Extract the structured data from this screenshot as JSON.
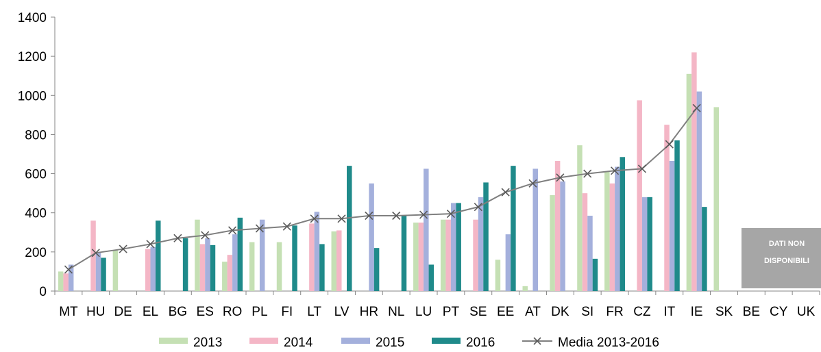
{
  "chart_data": {
    "type": "bar",
    "title": "",
    "xlabel": "",
    "ylabel": "",
    "ylim": [
      0,
      1400
    ],
    "yticks": [
      0,
      200,
      400,
      600,
      800,
      1000,
      1200,
      1400
    ],
    "grid": false,
    "legend_position": "bottom",
    "categories": [
      "MT",
      "HU",
      "DE",
      "EL",
      "BG",
      "ES",
      "RO",
      "PL",
      "FI",
      "LT",
      "LV",
      "HR",
      "NL",
      "LU",
      "PT",
      "SE",
      "EE",
      "AT",
      "DK",
      "SI",
      "FR",
      "CZ",
      "IT",
      "IE",
      "SK",
      "BE",
      "CY",
      "UK"
    ],
    "series": [
      {
        "name": "2013",
        "color": "#c5e0b4",
        "values": [
          100,
          0,
          210,
          0,
          0,
          365,
          150,
          250,
          250,
          0,
          305,
          0,
          0,
          350,
          365,
          0,
          160,
          25,
          490,
          745,
          610,
          0,
          0,
          1110,
          940,
          0,
          0,
          0
        ]
      },
      {
        "name": "2014",
        "color": "#f4b6c6",
        "values": [
          90,
          360,
          0,
          215,
          0,
          240,
          185,
          0,
          0,
          345,
          310,
          0,
          0,
          350,
          365,
          365,
          0,
          0,
          665,
          500,
          550,
          975,
          850,
          1220,
          0,
          0,
          0,
          0
        ]
      },
      {
        "name": "2015",
        "color": "#a4b0dc",
        "values": [
          135,
          195,
          0,
          225,
          0,
          270,
          290,
          365,
          0,
          405,
          0,
          550,
          0,
          625,
          450,
          480,
          290,
          625,
          560,
          385,
          635,
          480,
          665,
          1020,
          0,
          0,
          0,
          0
        ]
      },
      {
        "name": "2016",
        "color": "#1f8a8a",
        "values": [
          0,
          170,
          0,
          360,
          270,
          235,
          375,
          0,
          335,
          240,
          640,
          220,
          385,
          135,
          450,
          555,
          640,
          0,
          0,
          165,
          685,
          480,
          770,
          430,
          0,
          0,
          0,
          0
        ]
      }
    ],
    "average_line": {
      "name": "Media 2013-2016",
      "color": "#7f7f7f",
      "values": [
        110,
        195,
        215,
        240,
        270,
        285,
        310,
        320,
        330,
        370,
        370,
        385,
        385,
        390,
        395,
        430,
        505,
        550,
        580,
        600,
        615,
        625,
        750,
        935,
        null,
        null,
        null,
        null
      ]
    },
    "annotation": {
      "lines": [
        "DATI NON",
        "DISPONIBILI"
      ],
      "color": "#a6a6a6"
    }
  }
}
